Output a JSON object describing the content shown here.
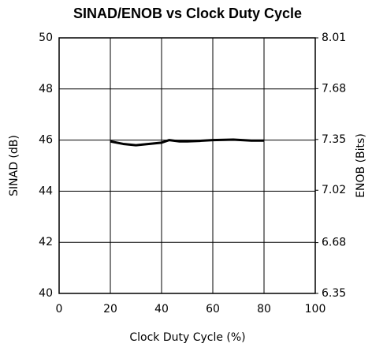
{
  "chart_data": {
    "type": "line",
    "title": "SINAD/ENOB vs Clock Duty Cycle",
    "xlabel": "Clock Duty Cycle (%)",
    "ylabel": "SINAD (dB)",
    "y2label": "ENOB (Bits)",
    "x": [
      20,
      25,
      30,
      35,
      40,
      43,
      47,
      50,
      55,
      60,
      68,
      75,
      80
    ],
    "series": [
      {
        "name": "SINAD",
        "color": "#000000",
        "values": [
          45.95,
          45.85,
          45.8,
          45.85,
          45.9,
          46.0,
          45.95,
          45.95,
          45.97,
          46.0,
          46.02,
          45.98,
          45.98
        ]
      }
    ],
    "xlim": [
      0,
      100
    ],
    "xticks": [
      0,
      20,
      40,
      60,
      80,
      100
    ],
    "ylim": [
      40,
      50
    ],
    "yticks": [
      40,
      42,
      44,
      46,
      48,
      50
    ],
    "y2lim": [
      6.35,
      8.01
    ],
    "y2ticks": [
      6.35,
      6.68,
      7.02,
      7.35,
      7.68,
      8.01
    ],
    "grid": true
  }
}
